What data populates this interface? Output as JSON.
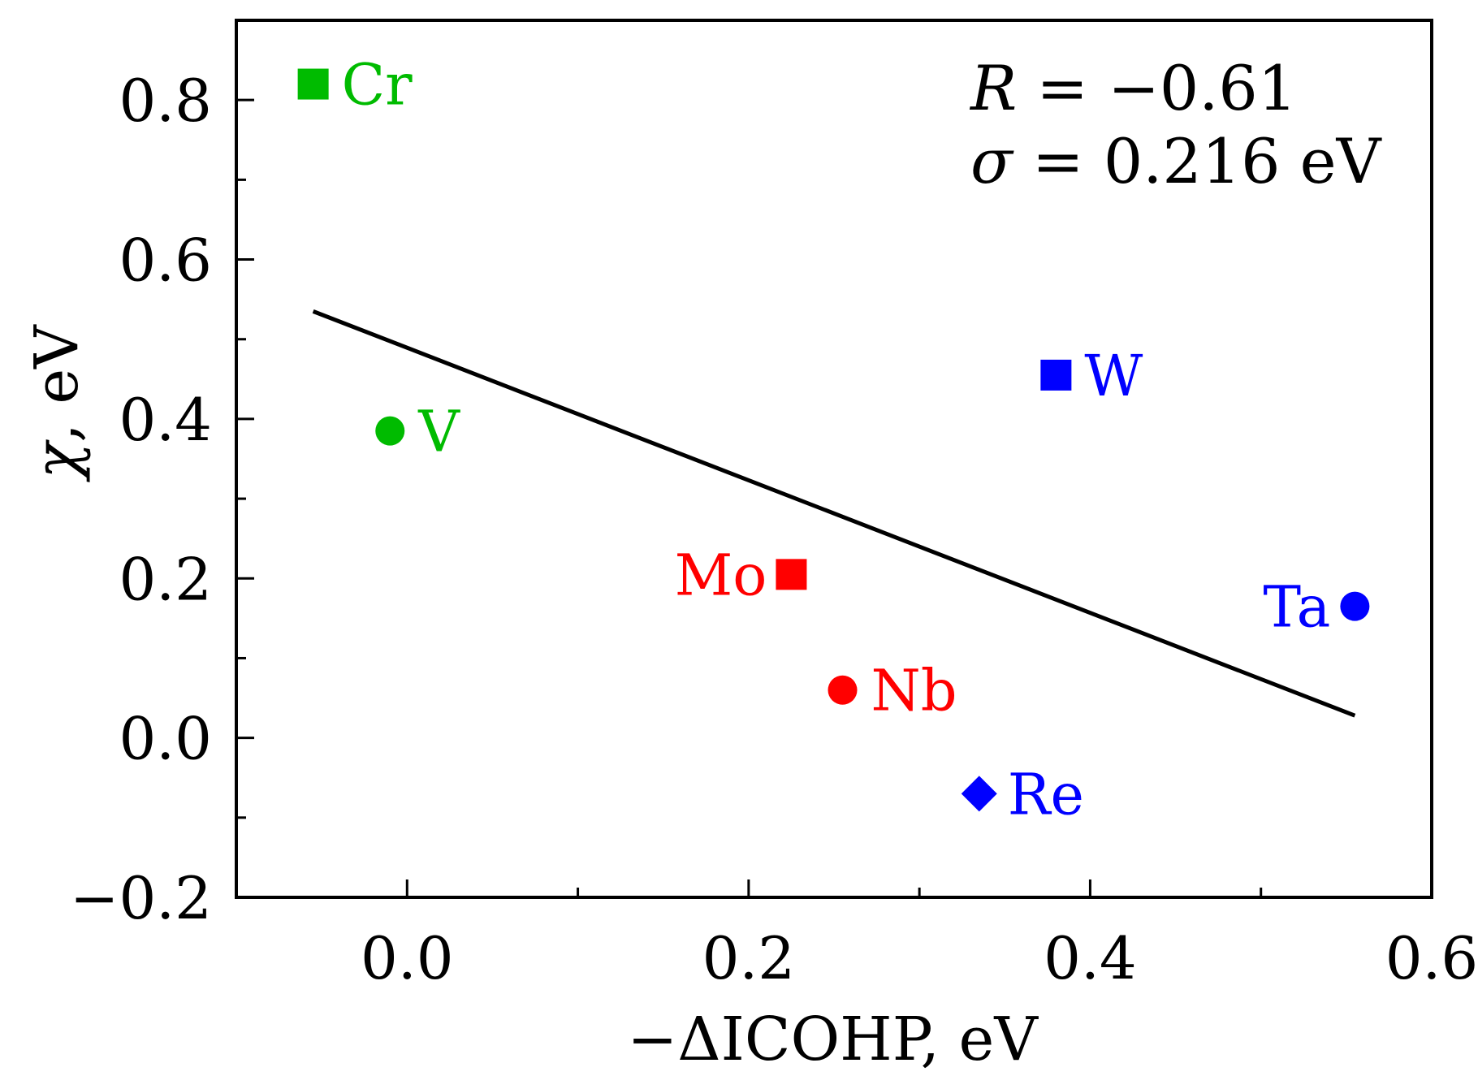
{
  "chart_data": {
    "type": "scatter",
    "title": "",
    "xlabel": "−ΔICOHP, eV",
    "ylabel_symbol": "χ",
    "ylabel_rest": ", eV",
    "xlim": [
      -0.1,
      0.6
    ],
    "ylim": [
      -0.2,
      0.9
    ],
    "x_ticks": [
      {
        "value": 0.0,
        "label": "0.0"
      },
      {
        "value": 0.2,
        "label": "0.2"
      },
      {
        "value": 0.4,
        "label": "0.4"
      },
      {
        "value": 0.6,
        "label": "0.6"
      }
    ],
    "x_minor_ticks": [
      -0.1,
      0.1,
      0.3,
      0.5
    ],
    "y_ticks": [
      {
        "value": -0.2,
        "label": "−0.2"
      },
      {
        "value": 0.0,
        "label": "0.0"
      },
      {
        "value": 0.2,
        "label": "0.2"
      },
      {
        "value": 0.4,
        "label": "0.4"
      },
      {
        "value": 0.6,
        "label": "0.6"
      },
      {
        "value": 0.8,
        "label": "0.8"
      }
    ],
    "y_minor_ticks": [
      -0.1,
      0.1,
      0.3,
      0.5,
      0.7
    ],
    "points": [
      {
        "label": "Cr",
        "x": -0.055,
        "y": 0.82,
        "marker": "square",
        "color": "#00bb00",
        "label_side": "right"
      },
      {
        "label": "V",
        "x": -0.01,
        "y": 0.385,
        "marker": "circle",
        "color": "#00bb00",
        "label_side": "right"
      },
      {
        "label": "Mo",
        "x": 0.225,
        "y": 0.205,
        "marker": "square",
        "color": "#ff0000",
        "label_side": "left"
      },
      {
        "label": "Nb",
        "x": 0.255,
        "y": 0.06,
        "marker": "circle",
        "color": "#ff0000",
        "label_side": "right"
      },
      {
        "label": "W",
        "x": 0.38,
        "y": 0.455,
        "marker": "square",
        "color": "#0000ff",
        "label_side": "right"
      },
      {
        "label": "Re",
        "x": 0.335,
        "y": -0.07,
        "marker": "diamond",
        "color": "#0000ff",
        "label_side": "right"
      },
      {
        "label": "Ta",
        "x": 0.555,
        "y": 0.165,
        "marker": "circle",
        "color": "#0000ff",
        "label_side": "left"
      }
    ],
    "fit_line": {
      "x": [
        -0.055,
        0.555
      ],
      "y": [
        0.535,
        0.028
      ],
      "color": "#000000"
    },
    "annotations": {
      "r_symbol": "R",
      "r_value": " = −0.61",
      "sigma_symbol": "σ",
      "sigma_value": " = 0.216 eV"
    }
  }
}
